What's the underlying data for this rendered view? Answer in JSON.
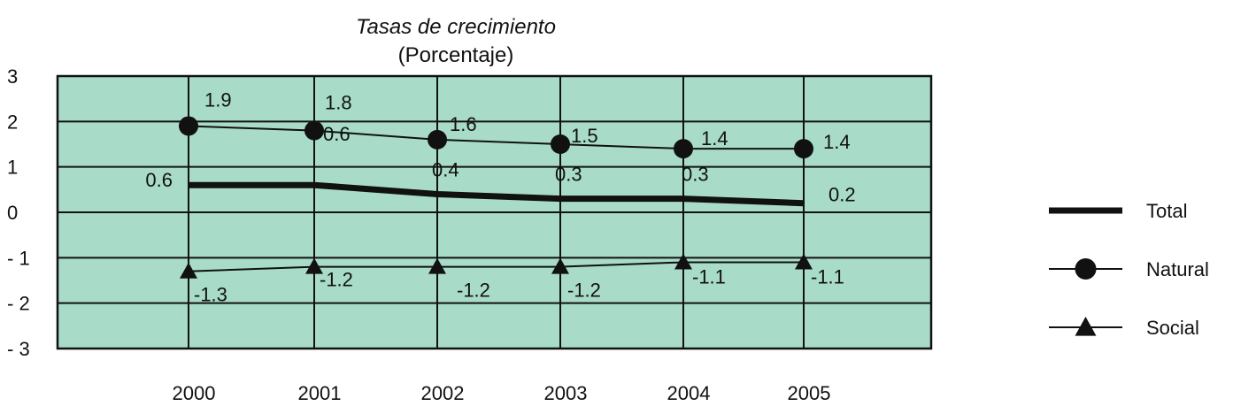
{
  "chart_data": {
    "type": "line",
    "title": "Tasas de crecimiento",
    "subtitle": "(Porcentaje)",
    "categories": [
      "2000",
      "2001",
      "2002",
      "2003",
      "2004",
      "2005"
    ],
    "ylim": [
      -3,
      3
    ],
    "yticks": [
      "3",
      "2",
      "1",
      "0",
      "- 1",
      "- 2",
      "- 3"
    ],
    "grid": true,
    "legend_position": "right",
    "colors": {
      "plot_bg": "#a8dcc8",
      "grid": "#111111",
      "line": "#111111"
    },
    "series": [
      {
        "name": "Total",
        "marker": "none",
        "values": [
          0.6,
          0.6,
          0.4,
          0.3,
          0.3,
          0.2
        ],
        "labels": [
          "0.6",
          "0.6",
          "0.4",
          "0.3",
          "0.3",
          "0.2"
        ]
      },
      {
        "name": "Natural",
        "marker": "circle",
        "values": [
          1.9,
          1.8,
          1.6,
          1.5,
          1.4,
          1.4
        ],
        "labels": [
          "1.9",
          "1.8",
          "1.6",
          "1.5",
          "1.4",
          "1.4"
        ]
      },
      {
        "name": "Social",
        "marker": "triangle",
        "values": [
          -1.3,
          -1.2,
          -1.2,
          -1.2,
          -1.1,
          -1.1
        ],
        "labels": [
          "-1.3",
          "-1.2",
          "-1.2",
          "-1.2",
          "-1.1",
          "-1.1"
        ]
      }
    ]
  }
}
